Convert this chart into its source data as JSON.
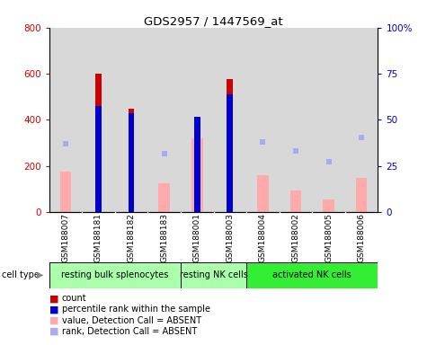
{
  "title": "GDS2957 / 1447569_at",
  "samples": [
    "GSM188007",
    "GSM188181",
    "GSM188182",
    "GSM188183",
    "GSM188001",
    "GSM188003",
    "GSM188004",
    "GSM188002",
    "GSM188005",
    "GSM188006"
  ],
  "count_values": [
    0,
    600,
    450,
    0,
    0,
    575,
    0,
    0,
    0,
    0
  ],
  "percentile_values": [
    0,
    460,
    430,
    0,
    415,
    510,
    0,
    0,
    0,
    0
  ],
  "absent_value_bars": [
    175,
    0,
    0,
    125,
    320,
    0,
    160,
    95,
    55,
    150
  ],
  "absent_rank_dots": [
    295,
    0,
    0,
    255,
    0,
    0,
    305,
    265,
    220,
    325
  ],
  "ylim": [
    0,
    800
  ],
  "y2lim": [
    0,
    100
  ],
  "yticks": [
    0,
    200,
    400,
    600,
    800
  ],
  "y2ticks": [
    0,
    25,
    50,
    75,
    100
  ],
  "count_color": "#cc0000",
  "percentile_color": "#0000cc",
  "absent_value_color": "#ffaaaa",
  "absent_rank_color": "#aaaaee",
  "bg_color": "#d8d8d8",
  "grid_color": "#333333",
  "cell_groups": [
    {
      "label": "resting bulk splenocytes",
      "start": 0,
      "end": 4,
      "color": "#aaffaa"
    },
    {
      "label": "resting NK cells",
      "start": 4,
      "end": 6,
      "color": "#aaffaa"
    },
    {
      "label": "activated NK cells",
      "start": 6,
      "end": 10,
      "color": "#33ee33"
    }
  ],
  "count_bar_width": 0.18,
  "absent_bar_width": 0.35
}
